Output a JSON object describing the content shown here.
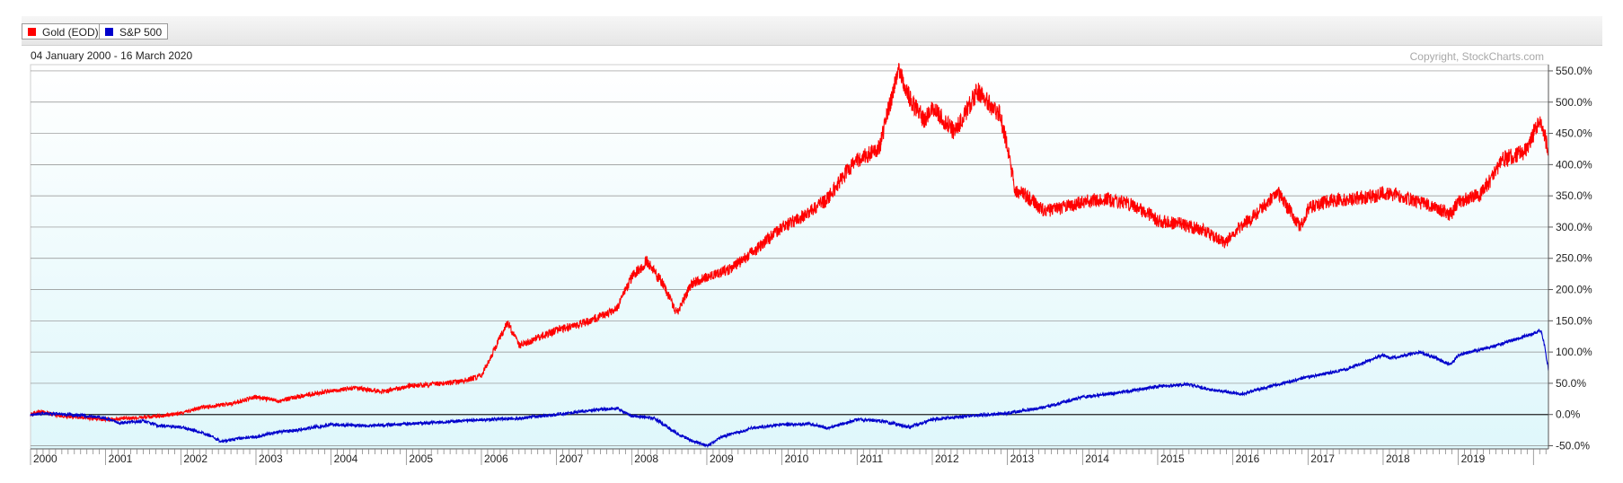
{
  "legend": {
    "items": [
      {
        "label": "Gold (EOD)",
        "color": "#ff0000"
      },
      {
        "label": "S&P 500",
        "color": "#0000cc"
      }
    ]
  },
  "date_range": "04 January 2000 - 16 March 2020",
  "copyright": "Copyright, StockCharts.com",
  "chart_data": {
    "type": "line",
    "title": "",
    "xlabel": "",
    "ylabel": "",
    "x_tick_labels": [
      "2000",
      "2001",
      "2002",
      "2003",
      "2004",
      "2005",
      "2006",
      "2007",
      "2008",
      "2009",
      "2010",
      "2011",
      "2012",
      "2013",
      "2014",
      "2015",
      "2016",
      "2017",
      "2018",
      "2019"
    ],
    "y_tick_labels": [
      "550.0%",
      "500.0%",
      "450.0%",
      "400.0%",
      "350.0%",
      "300.0%",
      "250.0%",
      "200.0%",
      "150.0%",
      "100.0%",
      "50.0%",
      "0.0%",
      "-50.0%"
    ],
    "ylim": [
      -55,
      560
    ],
    "xlim": [
      2000.0,
      2020.2
    ],
    "grid": true,
    "legend_position": "top-left",
    "series": [
      {
        "name": "Gold (EOD)",
        "color": "#ff0000",
        "x": [
          2000.0,
          2000.1,
          2000.4,
          2000.8,
          2001.0,
          2001.3,
          2001.7,
          2002.0,
          2002.3,
          2002.7,
          2003.0,
          2003.3,
          2003.7,
          2004.0,
          2004.3,
          2004.7,
          2005.0,
          2005.3,
          2005.7,
          2006.0,
          2006.35,
          2006.5,
          2006.8,
          2007.0,
          2007.4,
          2007.8,
          2008.0,
          2008.2,
          2008.4,
          2008.6,
          2008.8,
          2009.0,
          2009.3,
          2009.7,
          2010.0,
          2010.3,
          2010.6,
          2010.9,
          2011.0,
          2011.3,
          2011.55,
          2011.7,
          2011.9,
          2012.0,
          2012.3,
          2012.6,
          2012.9,
          2013.0,
          2013.1,
          2013.3,
          2013.5,
          2013.7,
          2014.0,
          2014.3,
          2014.6,
          2014.9,
          2015.0,
          2015.3,
          2015.6,
          2015.9,
          2016.0,
          2016.3,
          2016.6,
          2016.9,
          2017.0,
          2017.3,
          2017.6,
          2017.9,
          2018.0,
          2018.3,
          2018.6,
          2018.9,
          2019.0,
          2019.3,
          2019.6,
          2019.9,
          2020.0,
          2020.1,
          2020.2
        ],
        "values": [
          0,
          5,
          -2,
          -6,
          -8,
          -6,
          -3,
          2,
          12,
          18,
          28,
          22,
          32,
          38,
          42,
          37,
          45,
          48,
          52,
          62,
          148,
          110,
          125,
          135,
          148,
          168,
          220,
          245,
          212,
          162,
          210,
          220,
          232,
          268,
          300,
          318,
          345,
          395,
          405,
          428,
          555,
          505,
          470,
          490,
          452,
          518,
          480,
          430,
          360,
          345,
          325,
          330,
          340,
          345,
          338,
          320,
          310,
          305,
          295,
          275,
          290,
          320,
          355,
          300,
          330,
          342,
          345,
          350,
          355,
          348,
          335,
          320,
          340,
          352,
          408,
          422,
          450,
          472,
          420
        ]
      },
      {
        "name": "S&P 500",
        "color": "#0000cc",
        "x": [
          2000.0,
          2000.2,
          2000.5,
          2000.8,
          2001.0,
          2001.2,
          2001.5,
          2001.7,
          2002.0,
          2002.3,
          2002.55,
          2002.8,
          2003.0,
          2003.2,
          2003.6,
          2004.0,
          2004.5,
          2005.0,
          2005.5,
          2006.0,
          2006.5,
          2007.0,
          2007.4,
          2007.8,
          2008.0,
          2008.3,
          2008.6,
          2008.8,
          2009.0,
          2009.2,
          2009.6,
          2010.0,
          2010.4,
          2010.6,
          2011.0,
          2011.3,
          2011.7,
          2012.0,
          2012.5,
          2013.0,
          2013.5,
          2014.0,
          2014.5,
          2015.0,
          2015.4,
          2015.7,
          2016.0,
          2016.1,
          2016.5,
          2017.0,
          2017.5,
          2018.0,
          2018.1,
          2018.5,
          2018.9,
          2019.0,
          2019.5,
          2020.0,
          2020.1,
          2020.15,
          2020.2
        ],
        "values": [
          0,
          2,
          0,
          -3,
          -6,
          -14,
          -10,
          -18,
          -20,
          -30,
          -43,
          -38,
          -36,
          -30,
          -24,
          -16,
          -18,
          -15,
          -12,
          -8,
          -6,
          0,
          6,
          10,
          -2,
          -6,
          -30,
          -42,
          -50,
          -36,
          -22,
          -16,
          -15,
          -22,
          -8,
          -10,
          -20,
          -8,
          -2,
          2,
          12,
          28,
          35,
          45,
          48,
          40,
          35,
          32,
          45,
          60,
          72,
          95,
          90,
          100,
          80,
          95,
          110,
          130,
          135,
          110,
          70
        ]
      }
    ]
  }
}
